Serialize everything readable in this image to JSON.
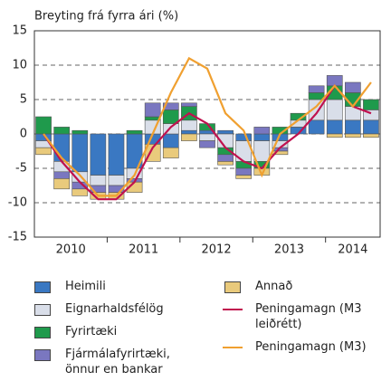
{
  "chart_data": {
    "type": "stacked-bar-line",
    "title": "Breyting frá fyrra ári (%)",
    "categories": [
      null,
      null,
      null,
      null,
      null,
      null,
      null,
      null,
      null,
      null,
      null,
      null,
      null,
      null,
      null,
      null,
      null,
      null,
      null
    ],
    "year_labels": [
      "2010",
      "2011",
      "2012",
      "2013",
      "2014"
    ],
    "ylim": [
      -15,
      15
    ],
    "yticks": [
      -15,
      -10,
      -5,
      0,
      5,
      10,
      15
    ],
    "grid": true,
    "series": [
      {
        "name": "Heimili",
        "color": "#3a78c2",
        "values": [
          -1,
          -4,
          -5.5,
          -6,
          -6,
          -5,
          -1.5,
          -2,
          0.5,
          0.5,
          0.5,
          -1,
          -1,
          -1,
          1,
          2,
          2,
          2,
          2
        ]
      },
      {
        "name": "Eignarhaldsfélög",
        "color": "#d9dee9",
        "values": [
          -1,
          -1.5,
          -1.5,
          -1.5,
          -1.5,
          -1.5,
          2,
          1.5,
          1.5,
          -1,
          -2,
          -3,
          -3,
          -1,
          1,
          3,
          3,
          2,
          1.5
        ]
      },
      {
        "name": "Fyrirtæki",
        "color": "#1f9a4c",
        "values": [
          2.5,
          1,
          0.5,
          0,
          0,
          0.5,
          0.5,
          2,
          2,
          1,
          -1,
          -1,
          -1,
          1,
          1,
          1,
          2,
          2,
          1.5
        ]
      },
      {
        "name": "Fjármálafyrirtæki, önnur en bankar",
        "color": "#7a77c0",
        "values": [
          0,
          -1,
          -1,
          -1,
          -1,
          -0.5,
          2,
          1,
          0.5,
          -1,
          -1,
          -1,
          1,
          -0.5,
          0,
          1,
          1.5,
          1.5,
          0
        ]
      },
      {
        "name": "Annað",
        "color": "#e9ca7c",
        "values": [
          -1,
          -1.5,
          -1,
          -1,
          -1,
          -1.5,
          -2.5,
          -1.5,
          -1,
          0,
          -0.5,
          -0.5,
          -1,
          -0.5,
          0,
          0,
          -0.5,
          -0.5,
          -0.5
        ]
      }
    ],
    "lines": [
      {
        "name": "Peningamagn (M3 leiðrétt)",
        "color": "#c0114e",
        "values": [
          0,
          -4,
          -7,
          -9.5,
          -9.5,
          -7,
          -2,
          1,
          3,
          1.5,
          -2,
          -4,
          -5,
          -2,
          0,
          3,
          7,
          4,
          3
        ]
      },
      {
        "name": "Peningamagn (M3)",
        "color": "#f0a030",
        "values": [
          0,
          -3.5,
          -6,
          -9,
          -9,
          -6,
          0,
          6,
          11,
          9.5,
          3,
          0.5,
          -6,
          0,
          2,
          4,
          7,
          4,
          7.5
        ]
      }
    ]
  }
}
